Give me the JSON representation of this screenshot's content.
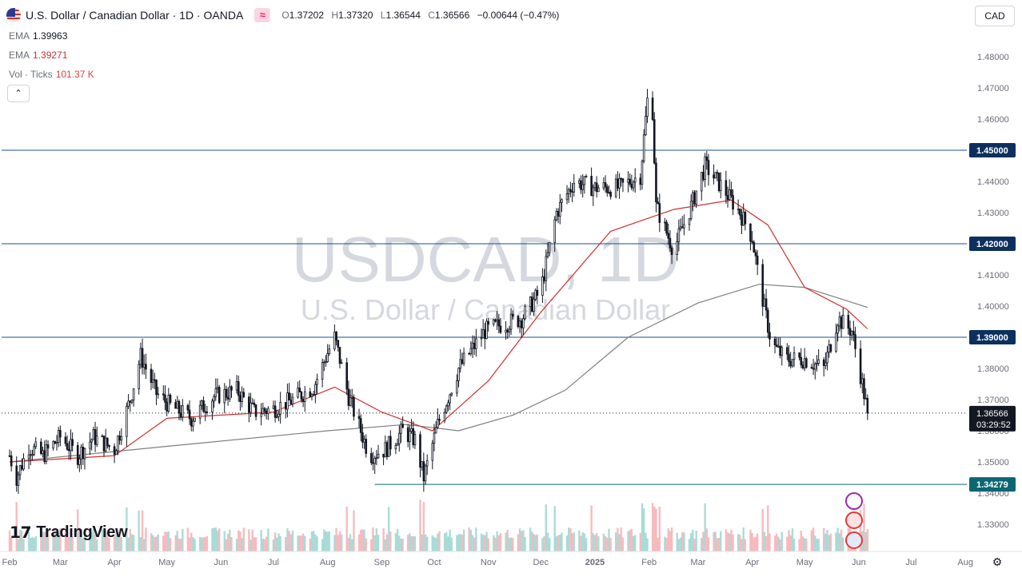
{
  "header": {
    "pair_title": "U.S. Dollar / Canadian Dollar · 1D · OANDA",
    "ohlc": {
      "o_label": "O",
      "o_value": "1.37202",
      "h_label": "H",
      "h_value": "1.37320",
      "l_label": "L",
      "l_value": "1.36544",
      "c_label": "C",
      "c_value": "1.36566",
      "change": "−0.00644 (−0.47%)"
    },
    "compare_icon": "approx-icon"
  },
  "indicators": [
    {
      "name": "EMA",
      "value": "1.39963"
    },
    {
      "name": "EMA",
      "value": "1.39271"
    },
    {
      "name": "Vol · Ticks",
      "value": "101.37 K"
    }
  ],
  "collapse_glyph": "⌃",
  "currency_button": "CAD",
  "watermark": {
    "symbol": "USDCAD, 1D",
    "name": "U.S. Dollar / Canadian Dollar"
  },
  "logo_text": "TradingView",
  "colors": {
    "up": "#131722",
    "down": "#131722",
    "ema_fast": "#d32f2f",
    "ema_slow": "#7f7f7f",
    "hline": "#1b4f8a",
    "vol_up": "#8ed0cb",
    "vol_down": "#f3a6ab",
    "axis_badge": "#0d2f5e",
    "support_badge": "#0c6672"
  },
  "chart_data": {
    "type": "candlestick",
    "symbol": "USDCAD",
    "timeframe": "1D",
    "ylim": [
      1.325,
      1.4855
    ],
    "y_ticks": [
      "1.48000",
      "1.47000",
      "1.46000",
      "1.45000",
      "1.44000",
      "1.43000",
      "1.42000",
      "1.41000",
      "1.40000",
      "1.39000",
      "1.38000",
      "1.37000",
      "1.36000",
      "1.35000",
      "1.34000",
      "1.33000"
    ],
    "x_ticks": [
      "Feb",
      "Mar",
      "Apr",
      "May",
      "Jun",
      "Jul",
      "Aug",
      "Sep",
      "Oct",
      "Nov",
      "Dec",
      "2025",
      "Feb",
      "Mar",
      "Apr",
      "May",
      "Jun",
      "Jul",
      "Aug"
    ],
    "price_path": [
      [
        "2024-02-01",
        1.352
      ],
      [
        "2024-02-05",
        1.345
      ],
      [
        "2024-02-12",
        1.355
      ],
      [
        "2024-02-20",
        1.352
      ],
      [
        "2024-03-01",
        1.358
      ],
      [
        "2024-03-11",
        1.352
      ],
      [
        "2024-03-20",
        1.358
      ],
      [
        "2024-04-01",
        1.354
      ],
      [
        "2024-04-10",
        1.37
      ],
      [
        "2024-04-16",
        1.384
      ],
      [
        "2024-04-25",
        1.372
      ],
      [
        "2024-05-03",
        1.368
      ],
      [
        "2024-05-15",
        1.364
      ],
      [
        "2024-05-28",
        1.371
      ],
      [
        "2024-06-10",
        1.373
      ],
      [
        "2024-06-20",
        1.366
      ],
      [
        "2024-07-01",
        1.367
      ],
      [
        "2024-07-12",
        1.37
      ],
      [
        "2024-07-24",
        1.374
      ],
      [
        "2024-08-01",
        1.385
      ],
      [
        "2024-08-05",
        1.39
      ],
      [
        "2024-08-13",
        1.371
      ],
      [
        "2024-08-25",
        1.352
      ],
      [
        "2024-09-03",
        1.354
      ],
      [
        "2024-09-13",
        1.36
      ],
      [
        "2024-09-20",
        1.357
      ],
      [
        "2024-09-25",
        1.345
      ],
      [
        "2024-10-03",
        1.362
      ],
      [
        "2024-10-15",
        1.38
      ],
      [
        "2024-10-30",
        1.392
      ],
      [
        "2024-11-08",
        1.394
      ],
      [
        "2024-11-20",
        1.396
      ],
      [
        "2024-12-01",
        1.405
      ],
      [
        "2024-12-10",
        1.43
      ],
      [
        "2024-12-20",
        1.44
      ],
      [
        "2025-01-01",
        1.438
      ],
      [
        "2025-01-15",
        1.438
      ],
      [
        "2025-01-27",
        1.442
      ],
      [
        "2025-02-02",
        1.478
      ],
      [
        "2025-02-05",
        1.432
      ],
      [
        "2025-02-15",
        1.418
      ],
      [
        "2025-02-25",
        1.432
      ],
      [
        "2025-03-05",
        1.445
      ],
      [
        "2025-03-15",
        1.438
      ],
      [
        "2025-03-25",
        1.43
      ],
      [
        "2025-04-01",
        1.422
      ],
      [
        "2025-04-05",
        1.408
      ],
      [
        "2025-04-12",
        1.388
      ],
      [
        "2025-04-20",
        1.383
      ],
      [
        "2025-05-01",
        1.383
      ],
      [
        "2025-05-12",
        1.38
      ],
      [
        "2025-05-20",
        1.396
      ],
      [
        "2025-05-28",
        1.392
      ],
      [
        "2025-06-02",
        1.378
      ],
      [
        "2025-06-06",
        1.3657
      ]
    ],
    "ema_fast": [
      [
        "2024-02-01",
        1.35
      ],
      [
        "2024-04-01",
        1.352
      ],
      [
        "2024-05-01",
        1.364
      ],
      [
        "2024-07-01",
        1.366
      ],
      [
        "2024-08-05",
        1.374
      ],
      [
        "2024-09-01",
        1.366
      ],
      [
        "2024-09-30",
        1.36
      ],
      [
        "2024-11-01",
        1.376
      ],
      [
        "2024-12-01",
        1.398
      ],
      [
        "2025-01-10",
        1.424
      ],
      [
        "2025-02-15",
        1.431
      ],
      [
        "2025-03-20",
        1.434
      ],
      [
        "2025-04-10",
        1.426
      ],
      [
        "2025-05-01",
        1.406
      ],
      [
        "2025-05-25",
        1.399
      ],
      [
        "2025-06-06",
        1.3927
      ]
    ],
    "ema_slow": [
      [
        "2024-02-01",
        1.35
      ],
      [
        "2024-05-01",
        1.355
      ],
      [
        "2024-08-01",
        1.36
      ],
      [
        "2024-09-15",
        1.362
      ],
      [
        "2024-10-15",
        1.36
      ],
      [
        "2024-11-15",
        1.365
      ],
      [
        "2024-12-15",
        1.373
      ],
      [
        "2025-01-20",
        1.39
      ],
      [
        "2025-03-01",
        1.401
      ],
      [
        "2025-04-05",
        1.407
      ],
      [
        "2025-05-01",
        1.406
      ],
      [
        "2025-06-06",
        1.3996
      ]
    ],
    "horizontal_levels": [
      {
        "label": "1.45000",
        "value": 1.45
      },
      {
        "label": "1.42000",
        "value": 1.42
      },
      {
        "label": "1.39000",
        "value": 1.39
      },
      {
        "label": "1.34279",
        "value": 1.34279,
        "start": "2024-08-28"
      }
    ],
    "last_price": {
      "label": "1.36566",
      "value": 1.36566,
      "countdown": "03:29:52"
    },
    "volume_ticks_peak": "101.37 K"
  }
}
